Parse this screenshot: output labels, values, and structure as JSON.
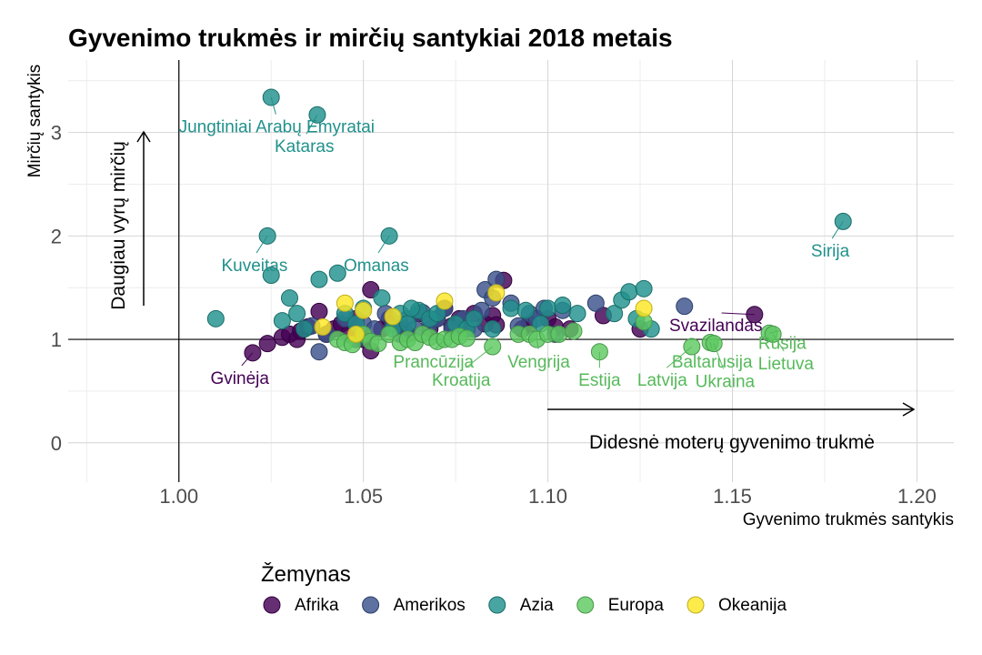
{
  "chart_data": {
    "type": "scatter",
    "title": "Gyvenimo trukmės ir mirčių santykiai 2018 metais",
    "xlabel": "Gyvenimo trukmės santykis",
    "ylabel": "Mirčių santykis",
    "xlim": [
      0.97,
      1.21
    ],
    "ylim": [
      -0.38,
      3.7
    ],
    "x_ticks": [
      1.0,
      1.05,
      1.1,
      1.15,
      1.2
    ],
    "x_tick_labels": [
      "1.00",
      "1.05",
      "1.10",
      "1.15",
      "1.20"
    ],
    "y_ticks": [
      0,
      1,
      2,
      3
    ],
    "y_tick_labels": [
      "0",
      "1",
      "2",
      "3"
    ],
    "grid": true,
    "reference_lines": {
      "x": 1.0,
      "y": 1.0
    },
    "annotations": {
      "vertical": "Daugiau vyrų mirčių",
      "horizontal": "Didesnė moterų gyvenimo trukmė"
    },
    "legend": {
      "title": "Žemynas",
      "placement": "bottom",
      "entries": [
        {
          "name": "Afrika",
          "color": "#440154"
        },
        {
          "name": "Amerikos",
          "color": "#3b528b"
        },
        {
          "name": "Azia",
          "color": "#21918c"
        },
        {
          "name": "Europa",
          "color": "#5ec962"
        },
        {
          "name": "Okeanija",
          "color": "#fde725"
        }
      ]
    },
    "labels": [
      {
        "text": "Jungtiniai Arabų Emyratai",
        "group": "Azia",
        "x": 1.025,
        "y": 3.34,
        "lx": 1.0265,
        "ly": 3.0
      },
      {
        "text": "Kataras",
        "group": "Azia",
        "x": 1.0375,
        "y": 3.17,
        "lx": 1.034,
        "ly": 2.81
      },
      {
        "text": "Kuveitas",
        "group": "Azia",
        "x": 1.024,
        "y": 2.0,
        "lx": 1.0205,
        "ly": 1.66
      },
      {
        "text": "Omanas",
        "group": "Azia",
        "x": 1.057,
        "y": 2.0,
        "lx": 1.0535,
        "ly": 1.66
      },
      {
        "text": "Sirija",
        "group": "Azia",
        "x": 1.18,
        "y": 2.14,
        "lx": 1.1765,
        "ly": 1.8
      },
      {
        "text": "Svazilandas",
        "group": "Afrika",
        "x": 1.156,
        "y": 1.24,
        "lx": 1.1455,
        "ly": 1.08
      },
      {
        "text": "Gvinėja",
        "group": "Afrika",
        "x": 1.02,
        "y": 0.87,
        "lx": 1.0165,
        "ly": 0.57
      },
      {
        "text": "Prancūzija",
        "group": "Europa",
        "x": 1.072,
        "y": 1.0,
        "lx": 1.069,
        "ly": 0.73
      },
      {
        "text": "Kroatija",
        "group": "Europa",
        "x": 1.085,
        "y": 0.93,
        "lx": 1.0765,
        "ly": 0.55
      },
      {
        "text": "Vengrija",
        "group": "Europa",
        "x": 1.097,
        "y": 1.0,
        "lx": 1.0975,
        "ly": 0.73
      },
      {
        "text": "Estija",
        "group": "Europa",
        "x": 1.114,
        "y": 0.88,
        "lx": 1.114,
        "ly": 0.55
      },
      {
        "text": "Latvija",
        "group": "Europa",
        "x": 1.139,
        "y": 0.93,
        "lx": 1.131,
        "ly": 0.55
      },
      {
        "text": "Baltarusija",
        "group": "Europa",
        "x": 1.144,
        "y": 0.97,
        "lx": 1.1445,
        "ly": 0.73
      },
      {
        "text": "Ukraina",
        "group": "Europa",
        "x": 1.145,
        "y": 0.96,
        "lx": 1.148,
        "ly": 0.54
      },
      {
        "text": "Rusija",
        "group": "Europa",
        "x": 1.16,
        "y": 1.06,
        "lx": 1.1635,
        "ly": 0.91
      },
      {
        "text": "Lietuva",
        "group": "Europa",
        "x": 1.161,
        "y": 1.05,
        "lx": 1.1645,
        "ly": 0.71
      }
    ],
    "series": [
      {
        "name": "Afrika",
        "color": "#440154",
        "points": [
          [
            1.02,
            0.87
          ],
          [
            1.024,
            0.96
          ],
          [
            1.028,
            1.02
          ],
          [
            1.03,
            1.05
          ],
          [
            1.032,
            1.0
          ],
          [
            1.033,
            1.08
          ],
          [
            1.035,
            1.12
          ],
          [
            1.038,
            1.27
          ],
          [
            1.04,
            1.05
          ],
          [
            1.042,
            1.1
          ],
          [
            1.044,
            1.15
          ],
          [
            1.046,
            1.05
          ],
          [
            1.048,
            1.2
          ],
          [
            1.05,
            1.0
          ],
          [
            1.052,
            1.48
          ],
          [
            1.052,
            0.89
          ],
          [
            1.055,
            1.1
          ],
          [
            1.057,
            1.2
          ],
          [
            1.06,
            1.15
          ],
          [
            1.062,
            1.05
          ],
          [
            1.065,
            1.25
          ],
          [
            1.068,
            1.1
          ],
          [
            1.07,
            1.2
          ],
          [
            1.072,
            1.3
          ],
          [
            1.074,
            1.13
          ],
          [
            1.076,
            1.2
          ],
          [
            1.078,
            1.1
          ],
          [
            1.08,
            1.25
          ],
          [
            1.083,
            1.15
          ],
          [
            1.085,
            1.23
          ],
          [
            1.086,
            1.14
          ],
          [
            1.088,
            1.57
          ],
          [
            1.093,
            1.1
          ],
          [
            1.095,
            1.15
          ],
          [
            1.1,
            1.2
          ],
          [
            1.102,
            1.12
          ],
          [
            1.106,
            1.1
          ],
          [
            1.115,
            1.23
          ],
          [
            1.125,
            1.1
          ],
          [
            1.156,
            1.24
          ]
        ]
      },
      {
        "name": "Amerikos",
        "color": "#3b528b",
        "points": [
          [
            1.036,
            1.13
          ],
          [
            1.038,
            0.88
          ],
          [
            1.04,
            1.05
          ],
          [
            1.045,
            1.2
          ],
          [
            1.048,
            1.0
          ],
          [
            1.05,
            1.15
          ],
          [
            1.053,
            1.1
          ],
          [
            1.056,
            1.25
          ],
          [
            1.058,
            1.15
          ],
          [
            1.06,
            1.05
          ],
          [
            1.062,
            1.2
          ],
          [
            1.064,
            1.1
          ],
          [
            1.066,
            1.26
          ],
          [
            1.068,
            1.15
          ],
          [
            1.07,
            1.2
          ],
          [
            1.072,
            1.3
          ],
          [
            1.074,
            1.1
          ],
          [
            1.077,
            1.2
          ],
          [
            1.08,
            1.1
          ],
          [
            1.082,
            1.28
          ],
          [
            1.083,
            1.48
          ],
          [
            1.085,
            1.4
          ],
          [
            1.086,
            1.58
          ],
          [
            1.09,
            1.35
          ],
          [
            1.092,
            1.13
          ],
          [
            1.095,
            1.25
          ],
          [
            1.097,
            1.2
          ],
          [
            1.099,
            1.3
          ],
          [
            1.102,
            1.05
          ],
          [
            1.104,
            1.28
          ],
          [
            1.113,
            1.35
          ],
          [
            1.137,
            1.32
          ]
        ]
      },
      {
        "name": "Azia",
        "color": "#21918c",
        "points": [
          [
            1.025,
            3.34
          ],
          [
            1.0375,
            3.17
          ],
          [
            1.024,
            2.0
          ],
          [
            1.057,
            2.0
          ],
          [
            1.18,
            2.14
          ],
          [
            1.01,
            1.2
          ],
          [
            1.025,
            1.62
          ],
          [
            1.028,
            1.18
          ],
          [
            1.03,
            1.4
          ],
          [
            1.032,
            1.25
          ],
          [
            1.034,
            1.1
          ],
          [
            1.038,
            1.58
          ],
          [
            1.043,
            1.64
          ],
          [
            1.045,
            1.25
          ],
          [
            1.05,
            1.3
          ],
          [
            1.055,
            1.4
          ],
          [
            1.058,
            1.1
          ],
          [
            1.06,
            1.25
          ],
          [
            1.062,
            1.15
          ],
          [
            1.065,
            1.28
          ],
          [
            1.068,
            1.2
          ],
          [
            1.07,
            1.25
          ],
          [
            1.075,
            1.15
          ],
          [
            1.078,
            1.1
          ],
          [
            1.08,
            1.2
          ],
          [
            1.085,
            1.1
          ],
          [
            1.09,
            1.3
          ],
          [
            1.094,
            1.28
          ],
          [
            1.098,
            1.15
          ],
          [
            1.1,
            1.3
          ],
          [
            1.104,
            1.33
          ],
          [
            1.108,
            1.25
          ],
          [
            1.118,
            1.25
          ],
          [
            1.12,
            1.38
          ],
          [
            1.122,
            1.46
          ],
          [
            1.124,
            1.2
          ],
          [
            1.126,
            1.49
          ],
          [
            1.128,
            1.1
          ],
          [
            1.048,
            1.15
          ],
          [
            1.063,
            1.3
          ]
        ]
      },
      {
        "name": "Europa",
        "color": "#5ec962",
        "points": [
          [
            1.043,
            1.0
          ],
          [
            1.045,
            0.97
          ],
          [
            1.047,
            0.95
          ],
          [
            1.05,
            1.05
          ],
          [
            1.052,
            0.98
          ],
          [
            1.054,
            0.96
          ],
          [
            1.057,
            1.05
          ],
          [
            1.06,
            0.97
          ],
          [
            1.062,
            1.0
          ],
          [
            1.064,
            0.97
          ],
          [
            1.066,
            1.05
          ],
          [
            1.068,
            1.02
          ],
          [
            1.07,
            0.98
          ],
          [
            1.072,
            1.0
          ],
          [
            1.074,
            1.0
          ],
          [
            1.076,
            1.03
          ],
          [
            1.078,
            1.01
          ],
          [
            1.085,
            0.93
          ],
          [
            1.092,
            1.05
          ],
          [
            1.095,
            1.05
          ],
          [
            1.097,
            1.0
          ],
          [
            1.1,
            1.05
          ],
          [
            1.103,
            1.05
          ],
          [
            1.107,
            1.08
          ],
          [
            1.114,
            0.88
          ],
          [
            1.126,
            1.17
          ],
          [
            1.139,
            0.93
          ],
          [
            1.144,
            0.97
          ],
          [
            1.145,
            0.96
          ],
          [
            1.16,
            1.06
          ],
          [
            1.161,
            1.05
          ]
        ]
      },
      {
        "name": "Okeanija",
        "color": "#fde725",
        "points": [
          [
            1.039,
            1.12
          ],
          [
            1.045,
            1.35
          ],
          [
            1.048,
            1.05
          ],
          [
            1.05,
            1.28
          ],
          [
            1.058,
            1.22
          ],
          [
            1.072,
            1.37
          ],
          [
            1.086,
            1.45
          ],
          [
            1.126,
            1.3
          ]
        ]
      }
    ]
  }
}
